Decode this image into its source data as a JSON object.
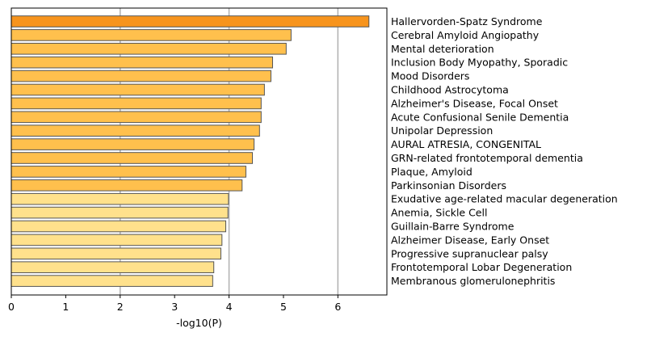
{
  "chart_data": {
    "type": "bar",
    "orientation": "horizontal",
    "xlabel": "-log10(P)",
    "ylabel": "",
    "title": "",
    "xlim": [
      0,
      6.9
    ],
    "xticks": [
      "0",
      "1",
      "2",
      "3",
      "4",
      "5",
      "6"
    ],
    "grid": "vertical gridlines at 2, 4, 6",
    "legend": "none",
    "label_position": "right",
    "colors": {
      "dark": "#F7941D",
      "mid": "#FFC04D",
      "light": "#FFE18C",
      "edge": "#555555",
      "grid": "#b0b0b0"
    },
    "categories": [
      "Hallervorden-Spatz Syndrome",
      "Cerebral Amyloid Angiopathy",
      "Mental deterioration",
      "Inclusion Body Myopathy, Sporadic",
      "Mood Disorders",
      "Childhood Astrocytoma",
      "Alzheimer's Disease, Focal Onset",
      "Acute Confusional Senile Dementia",
      "Unipolar Depression",
      "AURAL ATRESIA, CONGENITAL",
      "GRN-related frontotemporal dementia",
      "Plaque, Amyloid",
      "Parkinsonian Disorders",
      "Exudative age-related macular degeneration",
      "Anemia, Sickle Cell",
      "Guillain-Barre Syndrome",
      "Alzheimer Disease, Early Onset",
      "Progressive supranuclear palsy",
      "Frontotemporal Lobar Degeneration",
      "Membranous glomerulonephritis"
    ],
    "values": [
      6.57,
      5.14,
      5.05,
      4.8,
      4.77,
      4.65,
      4.59,
      4.59,
      4.56,
      4.46,
      4.43,
      4.31,
      4.24,
      3.99,
      3.98,
      3.94,
      3.87,
      3.85,
      3.72,
      3.7
    ],
    "color_group": [
      "dark",
      "mid",
      "mid",
      "mid",
      "mid",
      "mid",
      "mid",
      "mid",
      "mid",
      "mid",
      "mid",
      "mid",
      "mid",
      "light",
      "light",
      "light",
      "light",
      "light",
      "light",
      "light"
    ]
  }
}
